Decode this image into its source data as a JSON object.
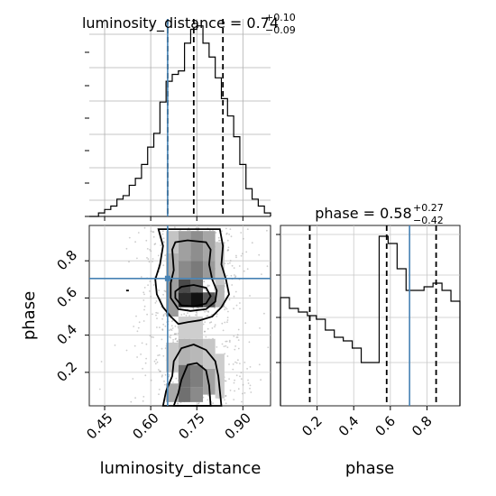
{
  "chart_data": {
    "type": "corner",
    "parameters": [
      "luminosity_distance",
      "phase"
    ],
    "truths": {
      "luminosity_distance": 0.655,
      "phase": 0.705
    },
    "truth_color": "#4682b4",
    "panels": [
      {
        "id": "hist_luminosity_distance",
        "type": "histogram",
        "title": {
          "main": "luminosity_distance = 0.74",
          "sup": "+0.10",
          "sub": "−0.09"
        },
        "quantiles": [
          0.655,
          0.74,
          0.835
        ],
        "median": 0.74,
        "xlim": [
          0.4,
          0.99
        ],
        "bin_edges": [
          0.4,
          0.43,
          0.45,
          0.47,
          0.49,
          0.51,
          0.53,
          0.55,
          0.57,
          0.59,
          0.61,
          0.63,
          0.65,
          0.67,
          0.69,
          0.71,
          0.73,
          0.75,
          0.77,
          0.79,
          0.81,
          0.83,
          0.85,
          0.87,
          0.89,
          0.91,
          0.93,
          0.95,
          0.97,
          0.99
        ],
        "counts": [
          0,
          1,
          2,
          3,
          5,
          6,
          9,
          11,
          15,
          20,
          24,
          33,
          39,
          41,
          42,
          50,
          54,
          55,
          50,
          46,
          40,
          34,
          29,
          23,
          15,
          8,
          5,
          3,
          1
        ],
        "ylim": [
          0,
          57
        ]
      },
      {
        "id": "density_ld_phase",
        "type": "2d-density",
        "xlim": [
          0.4,
          0.99
        ],
        "ylim": [
          0.02,
          0.99
        ],
        "x_label": "luminosity_distance",
        "y_label": "phase",
        "x_ticks": [
          "0.45",
          "0.60",
          "0.75",
          "0.90"
        ],
        "y_ticks": [
          "0.2",
          "0.4",
          "0.6",
          "0.8"
        ]
      },
      {
        "id": "hist_phase",
        "type": "histogram",
        "title": {
          "main": "phase = 0.58",
          "sup": "+0.27",
          "sub": "−0.42"
        },
        "quantiles": [
          0.16,
          0.58,
          0.85
        ],
        "median": 0.58,
        "xlim": [
          0.0,
          0.98
        ],
        "x_label": "phase",
        "x_ticks": [
          "0.2",
          "0.4",
          "0.6",
          "0.8"
        ],
        "bin_edges": [
          0.0,
          0.049,
          0.098,
          0.147,
          0.196,
          0.245,
          0.294,
          0.343,
          0.392,
          0.441,
          0.49,
          0.539,
          0.588,
          0.637,
          0.686,
          0.735,
          0.784,
          0.833,
          0.882,
          0.931,
          0.98
        ],
        "counts": [
          30,
          27,
          26,
          25,
          24,
          21,
          19,
          18,
          16,
          12,
          12,
          47,
          45,
          38,
          32,
          32,
          33,
          34,
          32,
          29
        ],
        "ylim": [
          0,
          50
        ]
      }
    ]
  }
}
